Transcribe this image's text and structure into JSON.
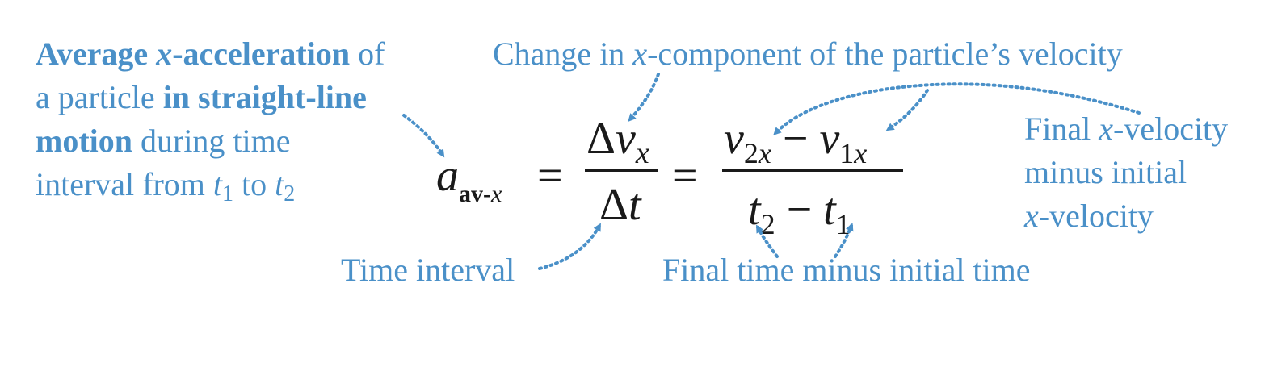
{
  "labels": {
    "left": {
      "line1_bold": "Average ",
      "line1_x": "x",
      "line1_bold2": "-acceleration",
      "line1_rest": " of",
      "line2_a": "a particle ",
      "line2_b": "in straight-line",
      "line3_bold": "motion",
      "line3_rest": " during time",
      "line4_a": "interval from ",
      "t": "t",
      "sub1": "1",
      "to": " to ",
      "sub2": "2"
    },
    "top": {
      "a": "Change in ",
      "x": "x",
      "b": "-component of the particle’s velocity"
    },
    "right": {
      "line1_a": "Final ",
      "line1_x": "x",
      "line1_b": "-velocity",
      "line2": "minus initial",
      "line3_x": "x",
      "line3_b": "-velocity"
    },
    "time_interval": "Time interval",
    "final_time": "Final time minus initial time"
  },
  "equation": {
    "a": "a",
    "a_sub": "av-",
    "a_sub_x": "x",
    "equals": "=",
    "delta": "Δ",
    "v": "v",
    "x": "x",
    "t": "t",
    "two": "2",
    "one": "1",
    "minus": "−"
  },
  "colors": {
    "accent": "#4a90c8",
    "text": "#1a1a1a"
  }
}
